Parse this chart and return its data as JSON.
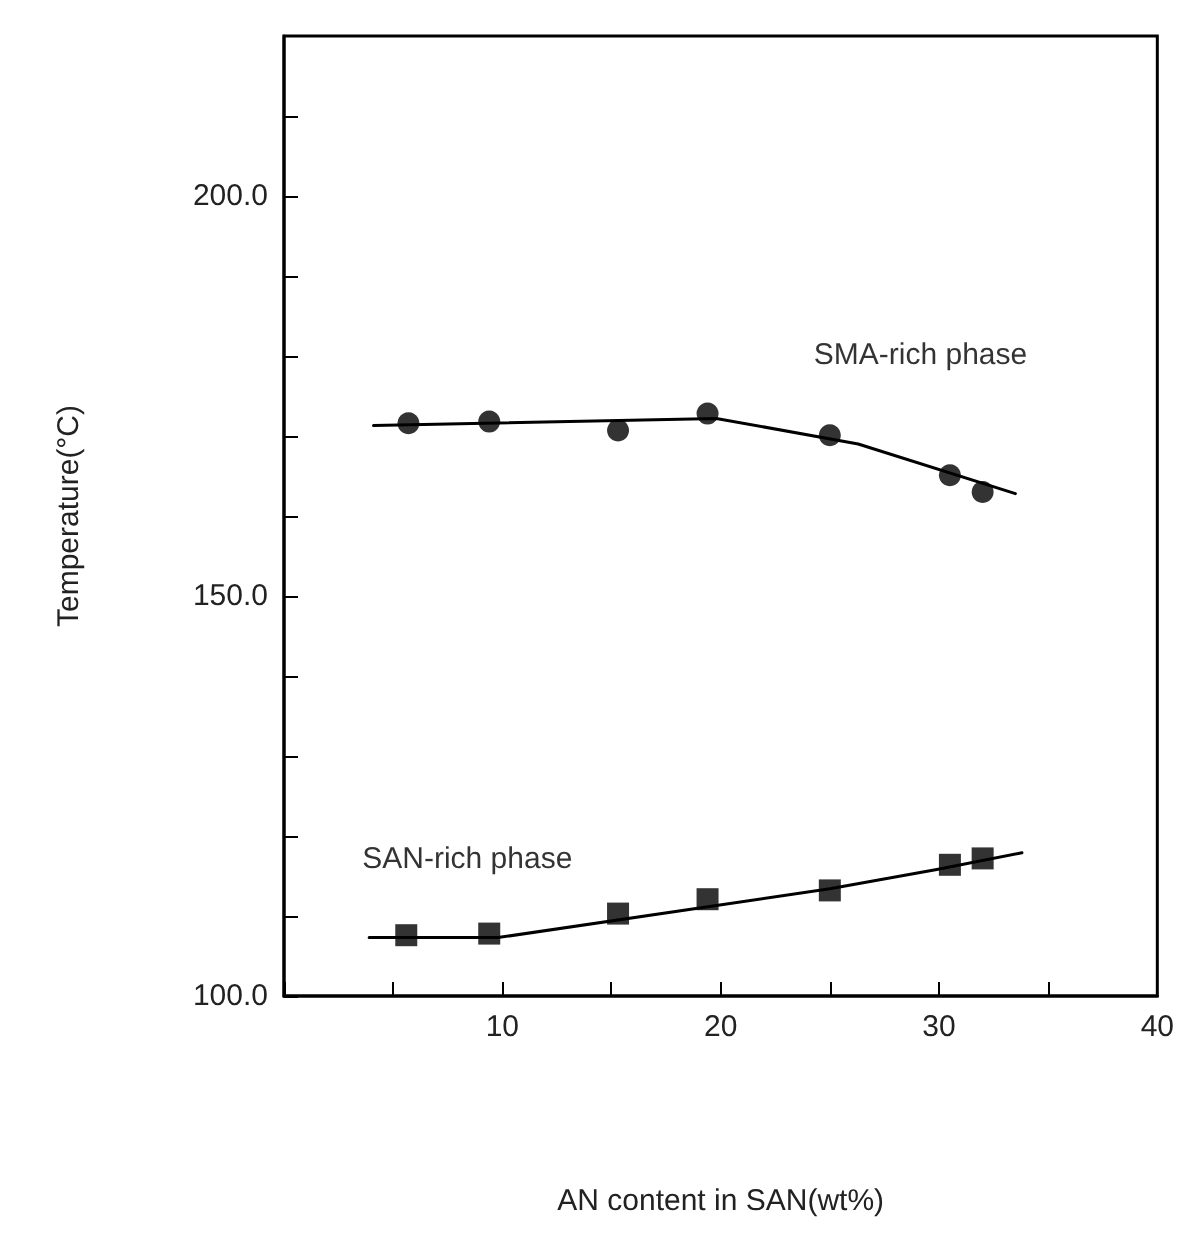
{
  "chart_data": {
    "type": "scatter",
    "xlabel": "AN content in SAN(wt%)",
    "ylabel": "Temperature(°C)",
    "xlim": [
      0,
      40
    ],
    "ylim": [
      100,
      220
    ],
    "xticks": [
      {
        "value": 0,
        "label": null
      },
      {
        "value": 5,
        "label": null
      },
      10,
      {
        "value": 15,
        "label": null
      },
      20,
      {
        "value": 25,
        "label": null
      },
      30,
      {
        "value": 35,
        "label": null
      },
      40
    ],
    "yticks": [
      {
        "value": 100,
        "label": "100.0"
      },
      {
        "value": 110,
        "label": null
      },
      {
        "value": 120,
        "label": null
      },
      {
        "value": 130,
        "label": null
      },
      {
        "value": 140,
        "label": null
      },
      {
        "value": 150,
        "label": "150.0"
      },
      {
        "value": 160,
        "label": null
      },
      {
        "value": 170,
        "label": null
      },
      {
        "value": 180,
        "label": null
      },
      {
        "value": 190,
        "label": null
      },
      {
        "value": 200,
        "label": "200.0"
      },
      {
        "value": 210,
        "label": null
      }
    ],
    "grid": false,
    "legend": false,
    "series": [
      {
        "name": "SMA-rich phase",
        "marker": "circle",
        "color": "#000000",
        "x": [
          5.7,
          9.4,
          15.3,
          19.4,
          25.0,
          30.5,
          32.0
        ],
        "values": [
          171.6,
          171.8,
          170.7,
          172.8,
          170.1,
          165.1,
          163.0
        ]
      },
      {
        "name": "SAN-rich phase",
        "marker": "square",
        "color": "#000000",
        "x": [
          5.6,
          9.4,
          15.3,
          19.4,
          25.0,
          30.5,
          32.0
        ],
        "values": [
          107.6,
          107.8,
          110.3,
          112.1,
          113.2,
          116.4,
          117.2
        ]
      },
      {
        "type": "line",
        "marker": "none",
        "line_style": "solid",
        "color": "#000000",
        "x": [
          4.1,
          19.8,
          26.3,
          33.5
        ],
        "values": [
          171.3,
          172.2,
          169.0,
          162.8
        ]
      },
      {
        "type": "line",
        "marker": "none",
        "line_style": "solid",
        "color": "#000000",
        "x": [
          3.9,
          9.8,
          25.0,
          29.9,
          33.8
        ],
        "values": [
          107.3,
          107.3,
          113.4,
          115.8,
          117.9
        ]
      }
    ]
  }
}
